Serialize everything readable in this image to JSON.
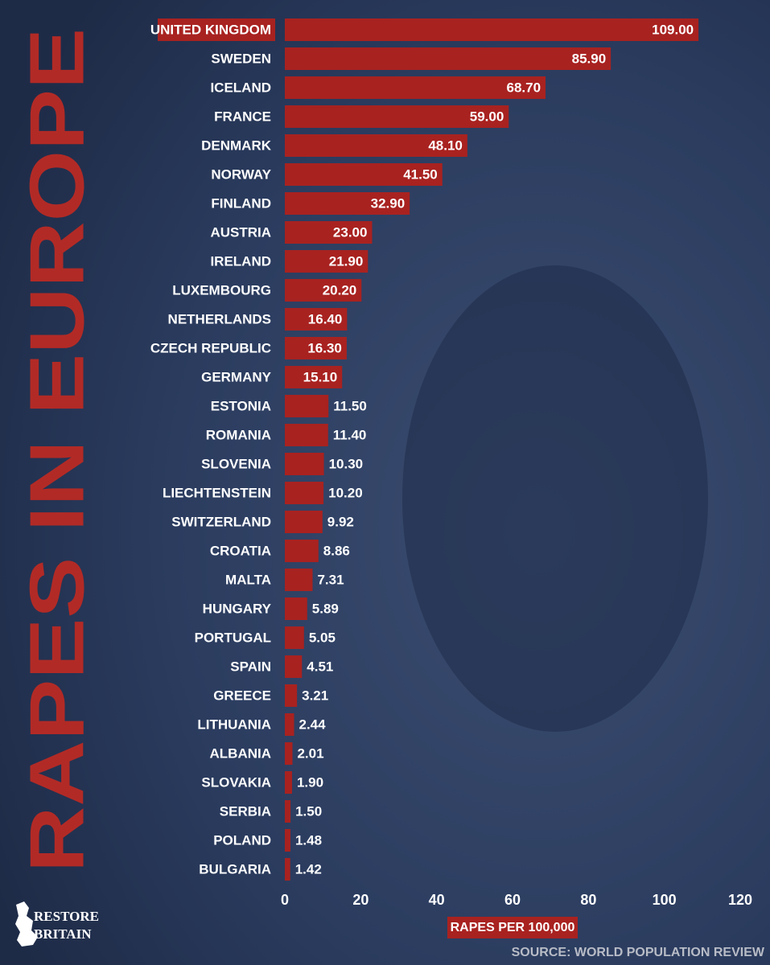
{
  "chart_data": {
    "type": "barh",
    "title": "RAPES IN EUROPE",
    "x_label": "RAPES PER 100,000",
    "source": "SOURCE: WORLD POPULATION REVIEW",
    "logo": [
      "RESTORE",
      "BRITAIN"
    ],
    "color": "#a82220",
    "categories": [
      "UNITED KINGDOM",
      "SWEDEN",
      "ICELAND",
      "FRANCE",
      "DENMARK",
      "NORWAY",
      "FINLAND",
      "AUSTRIA",
      "IRELAND",
      "LUXEMBOURG",
      "NETHERLANDS",
      "CZECH REPUBLIC",
      "GERMANY",
      "ESTONIA",
      "ROMANIA",
      "SLOVENIA",
      "LIECHTENSTEIN",
      "SWITZERLAND",
      "CROATIA",
      "MALTA",
      "HUNGARY",
      "PORTUGAL",
      "SPAIN",
      "GREECE",
      "LITHUANIA",
      "ALBANIA",
      "SLOVAKIA",
      "SERBIA",
      "POLAND",
      "BULGARIA"
    ],
    "values": [
      109,
      85.9,
      68.7,
      59,
      48.1,
      41.5,
      32.9,
      23,
      21.9,
      20.2,
      16.4,
      16.3,
      15.1,
      11.5,
      11.4,
      10.3,
      10.2,
      9.92,
      8.86,
      7.31,
      5.89,
      5.05,
      4.51,
      3.21,
      2.44,
      2.01,
      1.9,
      1.5,
      1.48,
      1.42
    ],
    "value_labels": [
      "109.00",
      "85.90",
      "68.70",
      "59.00",
      "48.10",
      "41.50",
      "32.90",
      "23.00",
      "21.90",
      "20.20",
      "16.40",
      "16.30",
      "15.10",
      "11.50",
      "11.40",
      "10.30",
      "10.20",
      "9.92",
      "8.86",
      "7.31",
      "5.89",
      "5.05",
      "4.51",
      "3.21",
      "2.44",
      "2.01",
      "1.90",
      "1.50",
      "1.48",
      "1.42"
    ],
    "xlim": [
      0,
      120
    ],
    "xticks": [
      0,
      20,
      40,
      60,
      80,
      100,
      120
    ]
  }
}
